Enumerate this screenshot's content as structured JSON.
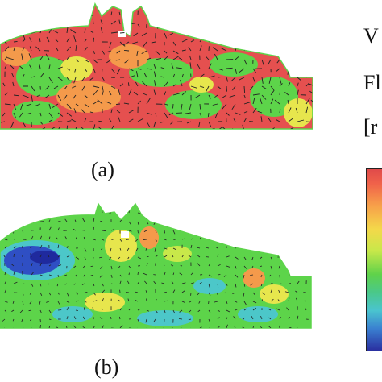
{
  "captions": {
    "a": "(a)",
    "b": "(b)"
  },
  "side_labels": {
    "line1": "V",
    "line2": "Fl",
    "line3": "[r"
  },
  "colors": {
    "high": "#e5504f",
    "orange": "#f49a4b",
    "yellow": "#e7e64d",
    "green": "#5dd44a",
    "cyan": "#4cc7c9",
    "blue": "#2f4fc4",
    "deep_blue": "#1f2a9e"
  },
  "panel_a_dominant_color": "high",
  "panel_b_dominant_color": "green"
}
